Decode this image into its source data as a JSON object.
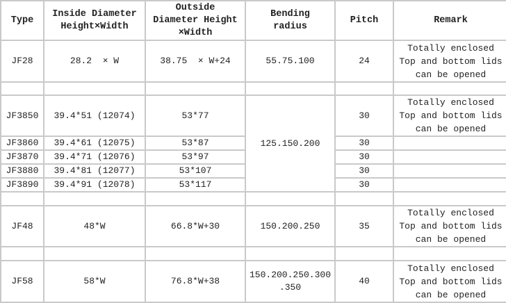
{
  "headers": {
    "type": "Type",
    "inside": [
      "Inside Diameter",
      "Height×Width"
    ],
    "outside": [
      "Outside",
      "Diameter Height",
      "×Width"
    ],
    "bending": [
      "Bending",
      "radius"
    ],
    "pitch": "Pitch",
    "remark": "Remark"
  },
  "remark_text": [
    "Totally enclosed",
    "Top and bottom lids",
    "can be opened"
  ],
  "rows": {
    "jf28": {
      "type": "JF28",
      "inside": "28.2  × W",
      "outside": "38.75  × W+24",
      "bending": "55.75.100",
      "pitch": "24"
    },
    "jf3850": {
      "type": "JF3850",
      "inside": "39.4*51 (12074)",
      "outside": "53*77",
      "pitch": "30"
    },
    "jf3860": {
      "type": "JF3860",
      "inside": "39.4*61 (12075)",
      "outside": "53*87",
      "pitch": "30"
    },
    "jf3870": {
      "type": "JF3870",
      "inside": "39.4*71 (12076)",
      "outside": "53*97",
      "pitch": "30"
    },
    "jf3880": {
      "type": "JF3880",
      "inside": "39.4*81 (12077)",
      "outside": "53*107",
      "pitch": "30"
    },
    "jf3890": {
      "type": "JF3890",
      "inside": "39.4*91 (12078)",
      "outside": "53*117",
      "pitch": "30"
    },
    "jf38_bending": "125.150.200",
    "jf48": {
      "type": "JF48",
      "inside": "48*W",
      "outside": "66.8*W+30",
      "bending": "150.200.250",
      "pitch": "35"
    },
    "jf58": {
      "type": "JF58",
      "inside": "58*W",
      "outside": "76.8*W+38",
      "bending": [
        "150.200.250.300",
        ".350"
      ],
      "pitch": "40"
    }
  }
}
